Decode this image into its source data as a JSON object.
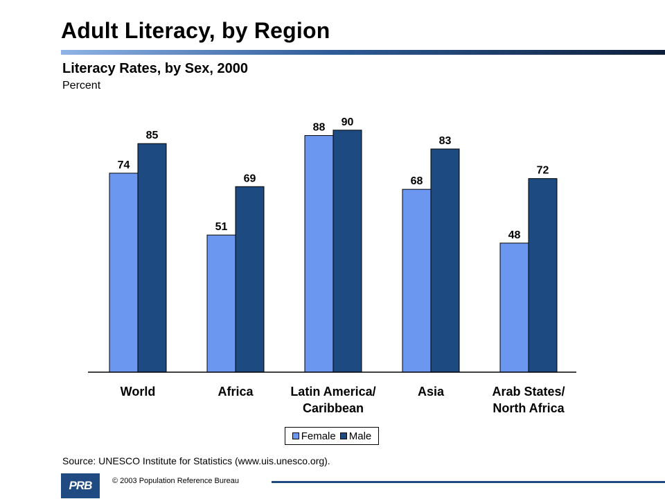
{
  "header": {
    "title": "Adult Literacy, by Region"
  },
  "chart_data": {
    "type": "bar",
    "title": "Literacy Rates, by Sex, 2000",
    "unit_label": "Percent",
    "categories": [
      "World",
      "Africa",
      "Latin America/\nCaribbean",
      "Asia",
      "Arab States/\nNorth Africa"
    ],
    "series": [
      {
        "name": "Female",
        "values": [
          74,
          51,
          88,
          68,
          48
        ],
        "color": "#6c97f0"
      },
      {
        "name": "Male",
        "values": [
          85,
          69,
          90,
          83,
          72
        ],
        "color": "#1d4a80"
      }
    ],
    "ylim": [
      0,
      100
    ],
    "xlabel": "",
    "ylabel": "",
    "grid": false,
    "legend_position": "bottom-center"
  },
  "legend": {
    "female_label": "Female",
    "male_label": "Male"
  },
  "footer": {
    "source": "Source: UNESCO Institute for Statistics (www.uis.unesco.org).",
    "logo_text": "PRB",
    "copyright": "© 2003 Population Reference Bureau"
  }
}
